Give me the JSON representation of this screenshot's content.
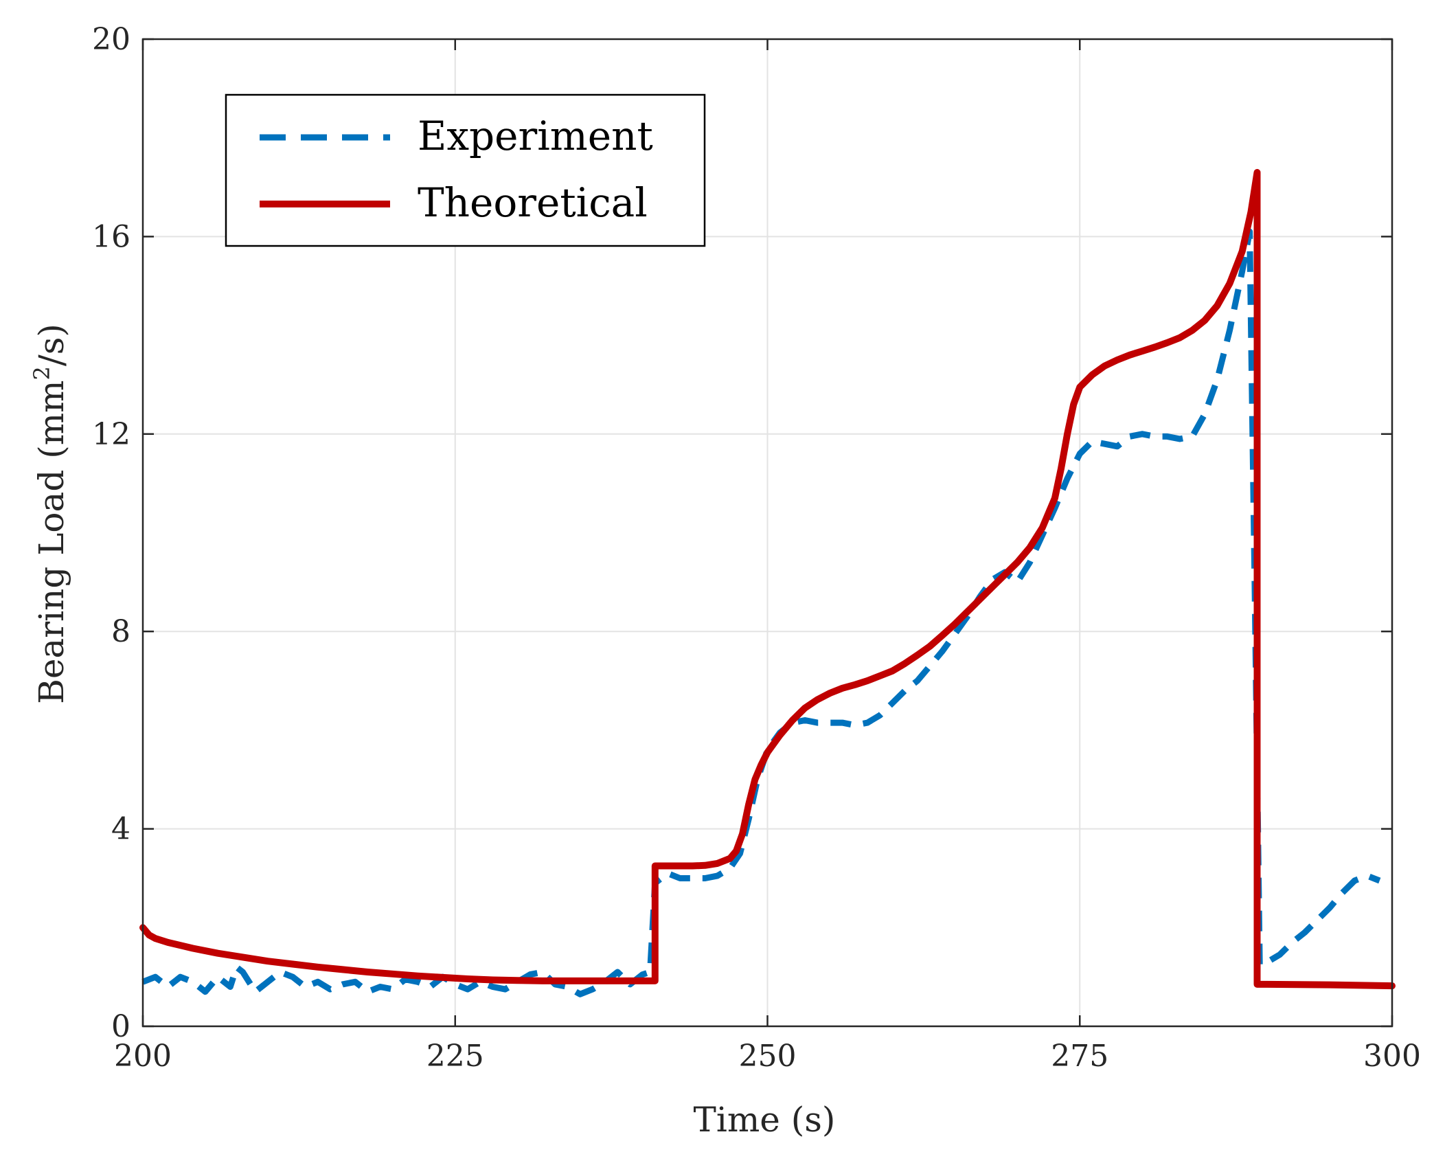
{
  "chart_data": {
    "type": "line",
    "title": "",
    "xlabel": "Time (s)",
    "ylabel_main": "Bearing Load (mm",
    "ylabel_sup": "2",
    "ylabel_tail": "/s)",
    "xlim": [
      200,
      300
    ],
    "ylim": [
      0,
      20
    ],
    "grid": true,
    "legend_position": "top-left",
    "x_ticks": [
      200,
      225,
      250,
      275,
      300
    ],
    "y_ticks": [
      0,
      4,
      8,
      12,
      16,
      20
    ],
    "x_tick_labels": [
      "200",
      "225",
      "250",
      "275",
      "300"
    ],
    "y_tick_labels": [
      "0",
      "4",
      "8",
      "12",
      "16",
      "20"
    ],
    "series": [
      {
        "name": "Experiment",
        "color": "#0072BD",
        "style": "dashed",
        "points": [
          [
            200,
            0.9
          ],
          [
            201,
            1.0
          ],
          [
            202,
            0.8
          ],
          [
            203,
            1.0
          ],
          [
            204,
            0.9
          ],
          [
            205,
            0.7
          ],
          [
            206,
            1.0
          ],
          [
            207,
            0.8
          ],
          [
            207.5,
            1.2
          ],
          [
            208,
            1.1
          ],
          [
            209,
            0.7
          ],
          [
            210,
            0.9
          ],
          [
            211,
            1.1
          ],
          [
            212,
            1.0
          ],
          [
            213,
            0.8
          ],
          [
            214,
            0.9
          ],
          [
            215,
            0.75
          ],
          [
            216,
            0.85
          ],
          [
            217,
            0.9
          ],
          [
            218,
            0.7
          ],
          [
            219,
            0.8
          ],
          [
            220,
            0.75
          ],
          [
            221,
            0.95
          ],
          [
            222,
            0.9
          ],
          [
            223,
            0.8
          ],
          [
            224,
            1.0
          ],
          [
            225,
            0.85
          ],
          [
            226,
            0.75
          ],
          [
            227,
            0.9
          ],
          [
            228,
            0.8
          ],
          [
            229,
            0.75
          ],
          [
            230,
            0.9
          ],
          [
            231,
            1.05
          ],
          [
            232,
            1.1
          ],
          [
            233,
            0.85
          ],
          [
            234,
            0.8
          ],
          [
            235,
            0.65
          ],
          [
            236,
            0.75
          ],
          [
            237,
            0.9
          ],
          [
            238,
            1.1
          ],
          [
            239,
            0.85
          ],
          [
            240,
            1.05
          ],
          [
            240.6,
            1.1
          ],
          [
            241,
            2.9
          ],
          [
            242,
            3.1
          ],
          [
            243,
            3.0
          ],
          [
            244,
            3.0
          ],
          [
            245,
            3.0
          ],
          [
            246,
            3.05
          ],
          [
            247,
            3.2
          ],
          [
            247.8,
            3.5
          ],
          [
            248.5,
            4.2
          ],
          [
            249.2,
            5.0
          ],
          [
            250,
            5.6
          ],
          [
            251,
            5.95
          ],
          [
            252,
            6.15
          ],
          [
            253,
            6.2
          ],
          [
            254,
            6.15
          ],
          [
            255,
            6.15
          ],
          [
            256,
            6.15
          ],
          [
            257,
            6.1
          ],
          [
            258,
            6.15
          ],
          [
            259,
            6.3
          ],
          [
            260,
            6.55
          ],
          [
            261,
            6.8
          ],
          [
            262,
            7.0
          ],
          [
            263,
            7.3
          ],
          [
            264,
            7.6
          ],
          [
            265,
            7.95
          ],
          [
            266,
            8.3
          ],
          [
            267,
            8.7
          ],
          [
            268,
            9.05
          ],
          [
            269,
            9.2
          ],
          [
            270,
            9.0
          ],
          [
            271,
            9.4
          ],
          [
            272,
            9.95
          ],
          [
            273,
            10.5
          ],
          [
            274,
            11.1
          ],
          [
            275,
            11.6
          ],
          [
            276,
            11.85
          ],
          [
            277,
            11.8
          ],
          [
            278,
            11.75
          ],
          [
            279,
            11.95
          ],
          [
            280,
            12.0
          ],
          [
            281,
            11.95
          ],
          [
            282,
            11.95
          ],
          [
            283,
            11.9
          ],
          [
            284,
            11.95
          ],
          [
            285,
            12.4
          ],
          [
            286,
            13.1
          ],
          [
            287,
            14.1
          ],
          [
            288,
            15.3
          ],
          [
            288.6,
            16.1
          ],
          [
            289.0,
            9.0
          ],
          [
            289.4,
            1.25
          ],
          [
            290,
            1.3
          ],
          [
            291,
            1.45
          ],
          [
            292,
            1.7
          ],
          [
            293,
            1.9
          ],
          [
            294,
            2.15
          ],
          [
            295,
            2.4
          ],
          [
            296,
            2.7
          ],
          [
            297,
            2.95
          ],
          [
            298,
            3.05
          ],
          [
            299,
            2.95
          ]
        ]
      },
      {
        "name": "Theoretical",
        "color": "#C00000",
        "style": "solid",
        "points": [
          [
            200,
            2.0
          ],
          [
            200.5,
            1.85
          ],
          [
            201,
            1.78
          ],
          [
            202,
            1.7
          ],
          [
            204,
            1.58
          ],
          [
            206,
            1.48
          ],
          [
            208,
            1.4
          ],
          [
            210,
            1.32
          ],
          [
            212,
            1.26
          ],
          [
            214,
            1.2
          ],
          [
            216,
            1.15
          ],
          [
            218,
            1.1
          ],
          [
            220,
            1.06
          ],
          [
            222,
            1.02
          ],
          [
            224,
            0.99
          ],
          [
            226,
            0.96
          ],
          [
            228,
            0.94
          ],
          [
            230,
            0.93
          ],
          [
            232,
            0.92
          ],
          [
            234,
            0.92
          ],
          [
            236,
            0.92
          ],
          [
            238,
            0.92
          ],
          [
            240,
            0.92
          ],
          [
            241,
            0.92
          ],
          [
            241,
            3.25
          ],
          [
            242,
            3.25
          ],
          [
            243,
            3.25
          ],
          [
            244,
            3.25
          ],
          [
            245,
            3.26
          ],
          [
            246,
            3.3
          ],
          [
            247,
            3.4
          ],
          [
            247.5,
            3.55
          ],
          [
            248,
            3.9
          ],
          [
            248.5,
            4.5
          ],
          [
            249,
            5.0
          ],
          [
            249.5,
            5.3
          ],
          [
            250,
            5.55
          ],
          [
            251,
            5.9
          ],
          [
            252,
            6.2
          ],
          [
            253,
            6.45
          ],
          [
            254,
            6.62
          ],
          [
            255,
            6.75
          ],
          [
            256,
            6.85
          ],
          [
            257,
            6.92
          ],
          [
            258,
            7.0
          ],
          [
            259,
            7.1
          ],
          [
            260,
            7.2
          ],
          [
            261,
            7.35
          ],
          [
            262,
            7.52
          ],
          [
            263,
            7.7
          ],
          [
            264,
            7.92
          ],
          [
            265,
            8.15
          ],
          [
            266,
            8.4
          ],
          [
            267,
            8.65
          ],
          [
            268,
            8.9
          ],
          [
            269,
            9.15
          ],
          [
            270,
            9.4
          ],
          [
            271,
            9.7
          ],
          [
            272,
            10.1
          ],
          [
            273,
            10.7
          ],
          [
            273.5,
            11.3
          ],
          [
            274,
            12.0
          ],
          [
            274.5,
            12.6
          ],
          [
            275,
            12.95
          ],
          [
            276,
            13.2
          ],
          [
            277,
            13.38
          ],
          [
            278,
            13.5
          ],
          [
            279,
            13.6
          ],
          [
            280,
            13.68
          ],
          [
            281,
            13.76
          ],
          [
            282,
            13.85
          ],
          [
            283,
            13.95
          ],
          [
            284,
            14.1
          ],
          [
            285,
            14.3
          ],
          [
            286,
            14.6
          ],
          [
            287,
            15.05
          ],
          [
            288,
            15.7
          ],
          [
            288.7,
            16.5
          ],
          [
            289.2,
            17.3
          ],
          [
            289.2,
            0.85
          ],
          [
            290,
            0.85
          ],
          [
            295,
            0.84
          ],
          [
            300,
            0.82
          ]
        ]
      }
    ]
  }
}
